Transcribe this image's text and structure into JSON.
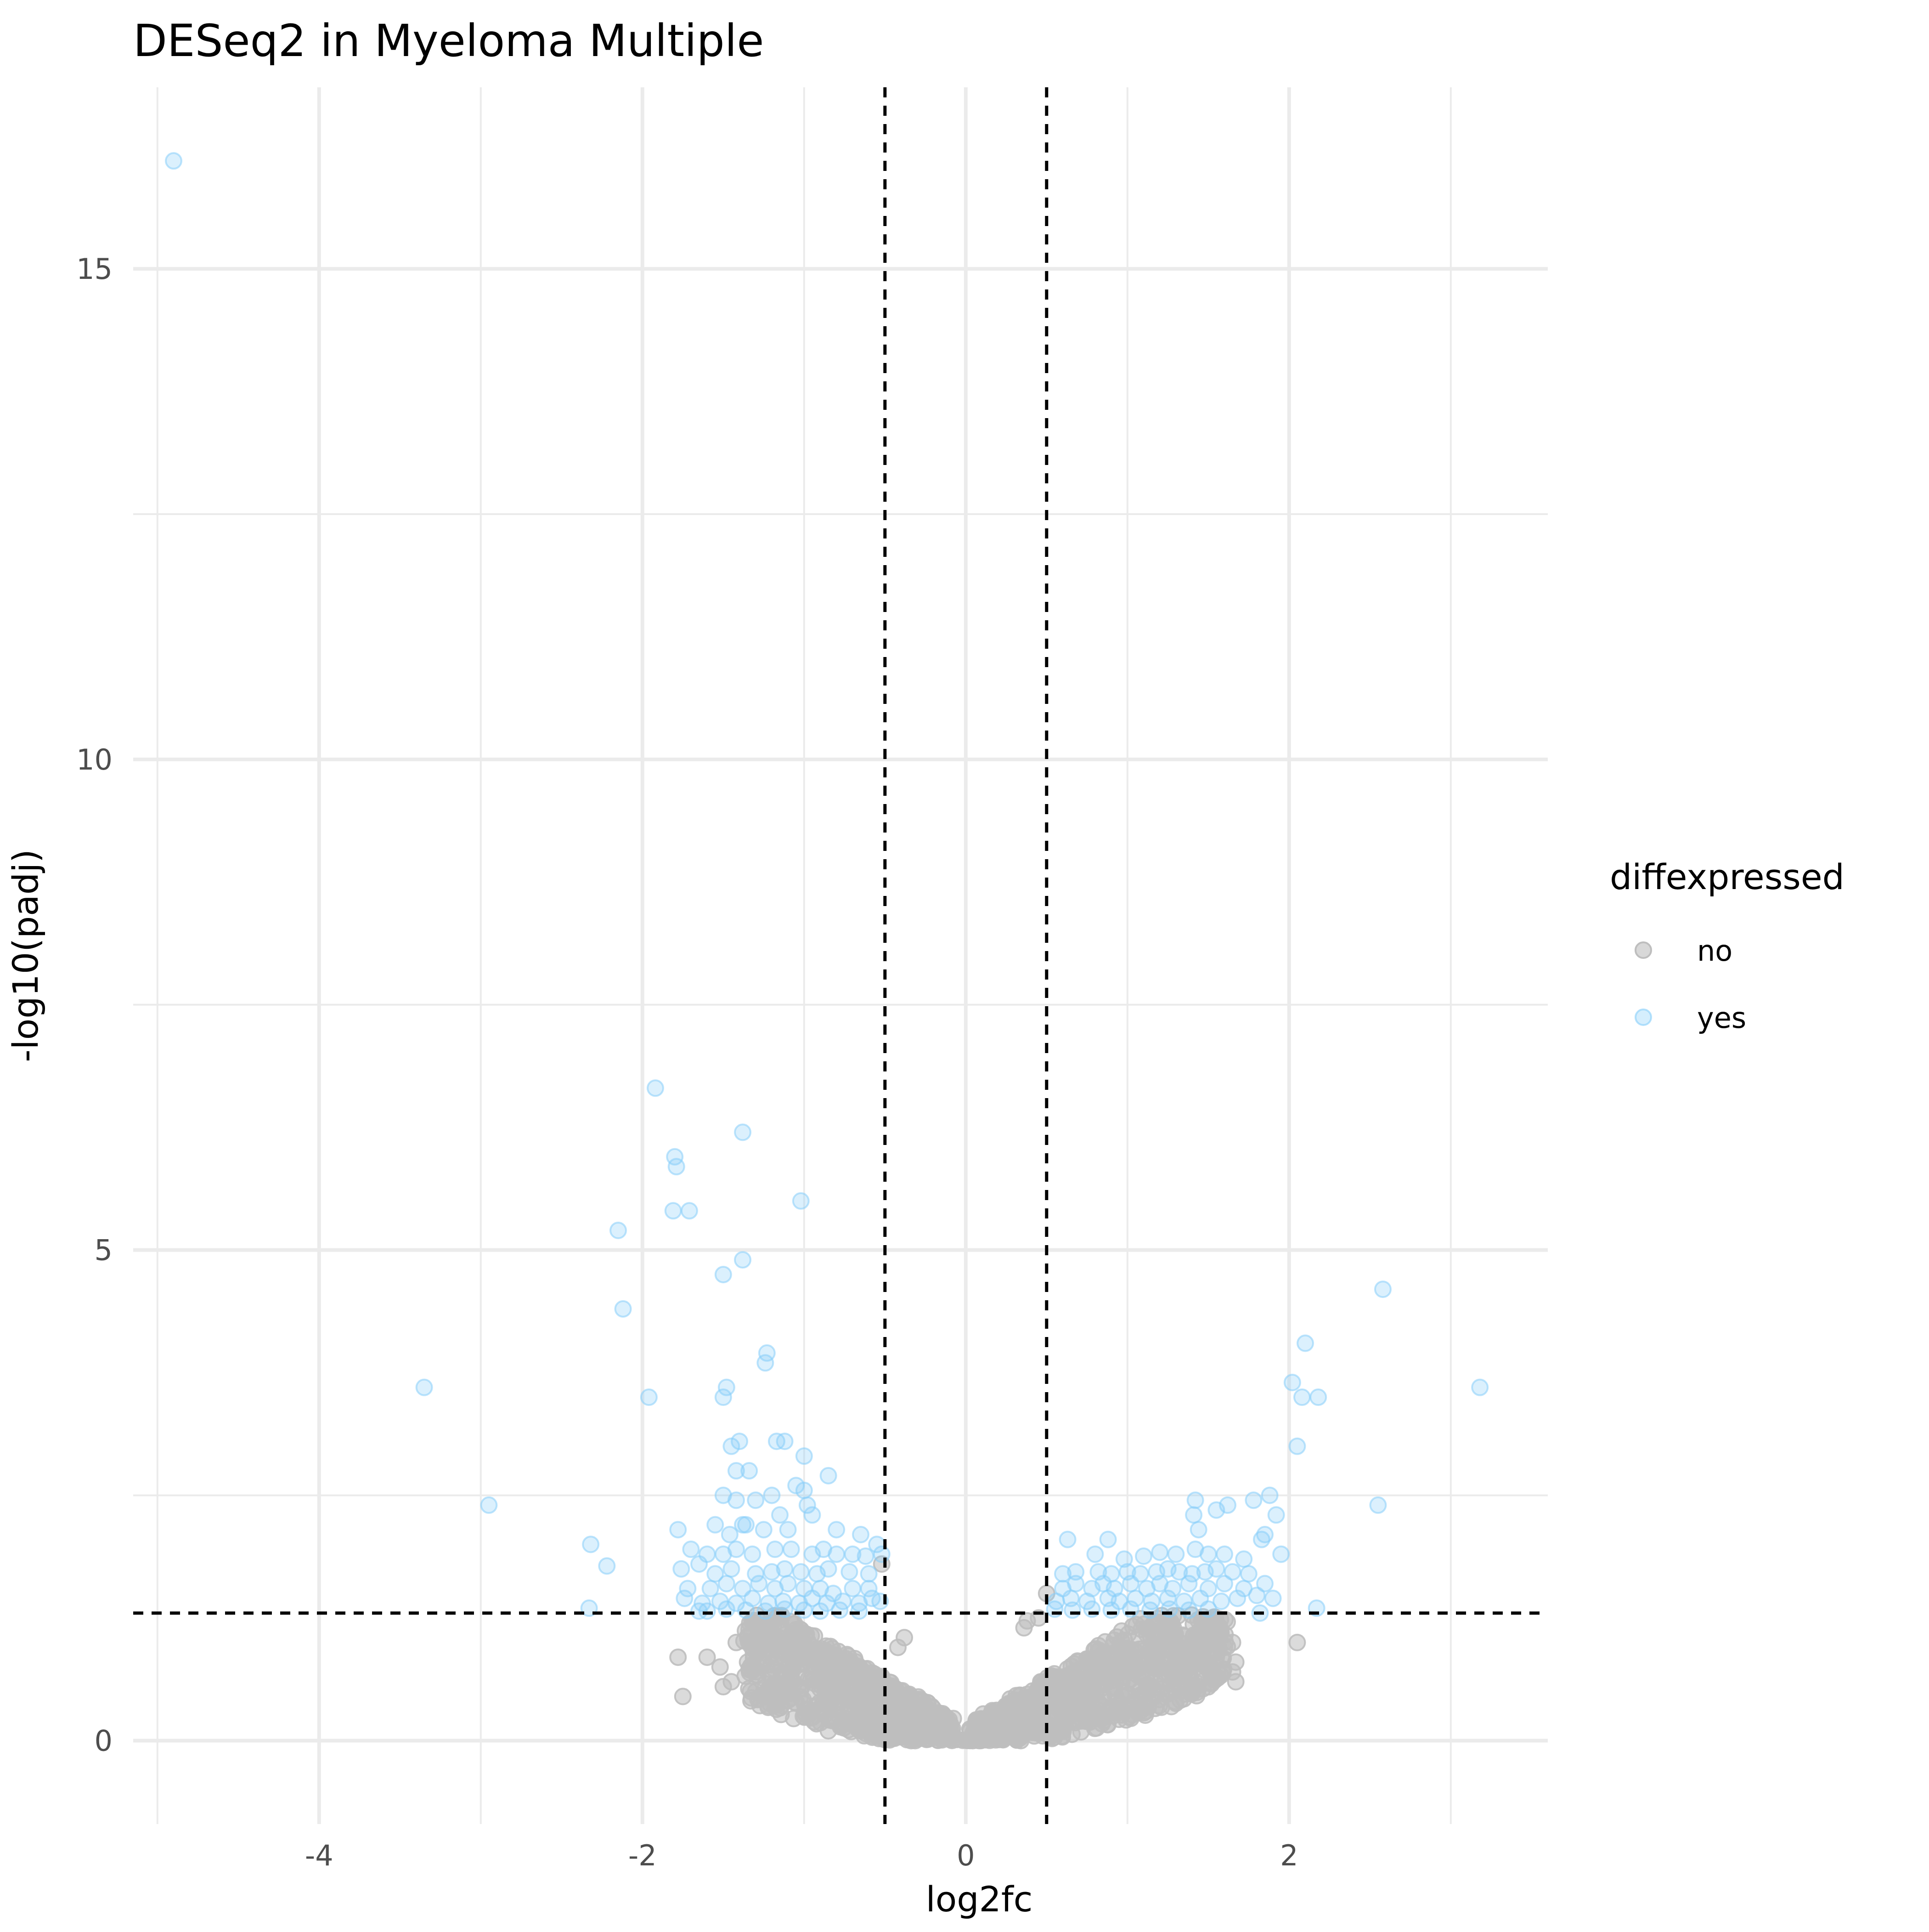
{
  "chart_data": {
    "type": "scatter",
    "title": "DESeq2 in Myeloma Multiple",
    "xlabel": "log2fc",
    "ylabel": "-log10(padj)",
    "xlim": [
      -5.15,
      3.6
    ],
    "ylim": [
      -0.85,
      16.85
    ],
    "x_ticks": [
      -4,
      -2,
      0,
      2
    ],
    "x_tick_labels": [
      "-4",
      "-2",
      "0",
      "2"
    ],
    "y_ticks": [
      0,
      5,
      10,
      15
    ],
    "y_tick_labels": [
      "0",
      "5",
      "10",
      "15"
    ],
    "grid": true,
    "thresholds": {
      "vertical": [
        -0.5,
        0.5
      ],
      "horizontal": [
        1.3
      ]
    },
    "legend": {
      "title": "diffexpressed",
      "placement": "right",
      "entries": [
        {
          "label": "no",
          "color": "#bebebe"
        },
        {
          "label": "yes",
          "color": "#87cefa"
        }
      ]
    },
    "series": [
      {
        "name": "yes",
        "color": "#87cefa",
        "points": [
          [
            -4.9,
            16.1
          ],
          [
            -3.35,
            3.6
          ],
          [
            -2.95,
            2.4
          ],
          [
            -2.32,
            2.0
          ],
          [
            -2.22,
            1.78
          ],
          [
            -2.33,
            1.35
          ],
          [
            -2.15,
            5.2
          ],
          [
            -2.12,
            4.4
          ],
          [
            -1.96,
            3.5
          ],
          [
            -1.92,
            6.65
          ],
          [
            -1.8,
            5.95
          ],
          [
            -1.79,
            5.85
          ],
          [
            -1.81,
            5.4
          ],
          [
            -1.71,
            5.4
          ],
          [
            -1.5,
            4.75
          ],
          [
            -1.38,
            4.9
          ],
          [
            -1.38,
            6.2
          ],
          [
            -1.02,
            5.5
          ],
          [
            -1.23,
            3.95
          ],
          [
            -1.24,
            3.85
          ],
          [
            -1.5,
            3.5
          ],
          [
            -1.48,
            3.6
          ],
          [
            -1.45,
            3.0
          ],
          [
            -1.4,
            3.05
          ],
          [
            -1.17,
            3.05
          ],
          [
            -1.12,
            3.05
          ],
          [
            -1.0,
            2.9
          ],
          [
            -0.85,
            2.7
          ],
          [
            -1.42,
            2.75
          ],
          [
            -1.34,
            2.75
          ],
          [
            -1.05,
            2.6
          ],
          [
            -1.0,
            2.55
          ],
          [
            -1.5,
            2.5
          ],
          [
            -1.42,
            2.45
          ],
          [
            -1.3,
            2.45
          ],
          [
            -1.2,
            2.5
          ],
          [
            -0.98,
            2.4
          ],
          [
            -0.95,
            2.3
          ],
          [
            -1.78,
            2.15
          ],
          [
            -1.55,
            2.2
          ],
          [
            -1.46,
            2.1
          ],
          [
            -1.38,
            2.2
          ],
          [
            -1.36,
            2.2
          ],
          [
            -1.25,
            2.15
          ],
          [
            -1.15,
            2.3
          ],
          [
            -1.1,
            2.15
          ],
          [
            -0.8,
            2.15
          ],
          [
            -0.65,
            2.1
          ],
          [
            -0.55,
            2.0
          ],
          [
            -0.52,
            1.9
          ],
          [
            -1.7,
            1.95
          ],
          [
            -1.6,
            1.9
          ],
          [
            -1.5,
            1.9
          ],
          [
            -1.42,
            1.95
          ],
          [
            -1.32,
            1.9
          ],
          [
            -1.18,
            1.95
          ],
          [
            -1.08,
            1.95
          ],
          [
            -0.95,
            1.9
          ],
          [
            -0.88,
            1.95
          ],
          [
            -0.8,
            1.9
          ],
          [
            -0.7,
            1.9
          ],
          [
            -0.62,
            1.88
          ],
          [
            -1.76,
            1.75
          ],
          [
            -1.65,
            1.8
          ],
          [
            -1.55,
            1.7
          ],
          [
            -1.45,
            1.75
          ],
          [
            -1.3,
            1.7
          ],
          [
            -1.2,
            1.72
          ],
          [
            -1.12,
            1.75
          ],
          [
            -1.02,
            1.72
          ],
          [
            -0.92,
            1.7
          ],
          [
            -0.85,
            1.75
          ],
          [
            -0.72,
            1.72
          ],
          [
            -0.6,
            1.7
          ],
          [
            -1.72,
            1.55
          ],
          [
            -1.58,
            1.55
          ],
          [
            -1.48,
            1.6
          ],
          [
            -1.38,
            1.55
          ],
          [
            -1.28,
            1.6
          ],
          [
            -1.18,
            1.55
          ],
          [
            -1.1,
            1.6
          ],
          [
            -1.0,
            1.55
          ],
          [
            -0.9,
            1.55
          ],
          [
            -0.82,
            1.5
          ],
          [
            -0.7,
            1.55
          ],
          [
            -0.6,
            1.55
          ],
          [
            -1.74,
            1.45
          ],
          [
            -1.63,
            1.4
          ],
          [
            -1.52,
            1.42
          ],
          [
            -1.42,
            1.4
          ],
          [
            -1.32,
            1.45
          ],
          [
            -1.22,
            1.4
          ],
          [
            -1.13,
            1.42
          ],
          [
            -1.03,
            1.4
          ],
          [
            -0.95,
            1.45
          ],
          [
            -0.86,
            1.4
          ],
          [
            -0.76,
            1.42
          ],
          [
            -0.66,
            1.4
          ],
          [
            -0.58,
            1.45
          ],
          [
            -0.53,
            1.42
          ],
          [
            -1.6,
            1.32
          ],
          [
            -1.48,
            1.34
          ],
          [
            -1.36,
            1.33
          ],
          [
            -1.24,
            1.32
          ],
          [
            -1.12,
            1.34
          ],
          [
            -1.0,
            1.33
          ],
          [
            -0.9,
            1.32
          ],
          [
            -0.78,
            1.33
          ],
          [
            -0.66,
            1.32
          ],
          [
            -1.65,
            1.32
          ],
          [
            2.58,
            4.6
          ],
          [
            2.1,
            4.05
          ],
          [
            2.02,
            3.65
          ],
          [
            2.08,
            3.5
          ],
          [
            2.18,
            3.5
          ],
          [
            3.18,
            3.6
          ],
          [
            2.05,
            3.0
          ],
          [
            2.55,
            2.4
          ],
          [
            1.88,
            2.5
          ],
          [
            1.78,
            2.45
          ],
          [
            1.62,
            2.4
          ],
          [
            1.55,
            2.35
          ],
          [
            1.42,
            2.45
          ],
          [
            1.41,
            2.3
          ],
          [
            1.44,
            2.15
          ],
          [
            1.85,
            2.1
          ],
          [
            1.92,
            2.3
          ],
          [
            1.83,
            2.05
          ],
          [
            1.95,
            1.9
          ],
          [
            1.72,
            1.85
          ],
          [
            1.6,
            1.9
          ],
          [
            1.5,
            1.9
          ],
          [
            1.42,
            1.95
          ],
          [
            1.3,
            1.9
          ],
          [
            1.2,
            1.92
          ],
          [
            1.1,
            1.88
          ],
          [
            0.98,
            1.85
          ],
          [
            0.88,
            2.05
          ],
          [
            0.8,
            1.9
          ],
          [
            0.63,
            2.05
          ],
          [
            1.75,
            1.7
          ],
          [
            1.65,
            1.72
          ],
          [
            1.55,
            1.75
          ],
          [
            1.48,
            1.72
          ],
          [
            1.4,
            1.7
          ],
          [
            1.32,
            1.72
          ],
          [
            1.25,
            1.75
          ],
          [
            1.18,
            1.72
          ],
          [
            1.08,
            1.7
          ],
          [
            1.0,
            1.72
          ],
          [
            0.9,
            1.7
          ],
          [
            0.82,
            1.72
          ],
          [
            0.68,
            1.72
          ],
          [
            0.6,
            1.7
          ],
          [
            1.85,
            1.6
          ],
          [
            1.72,
            1.55
          ],
          [
            1.6,
            1.6
          ],
          [
            1.5,
            1.55
          ],
          [
            1.38,
            1.6
          ],
          [
            1.28,
            1.55
          ],
          [
            1.2,
            1.6
          ],
          [
            1.12,
            1.55
          ],
          [
            1.02,
            1.6
          ],
          [
            0.92,
            1.55
          ],
          [
            0.85,
            1.6
          ],
          [
            0.78,
            1.55
          ],
          [
            0.68,
            1.6
          ],
          [
            0.6,
            1.55
          ],
          [
            1.9,
            1.45
          ],
          [
            1.8,
            1.48
          ],
          [
            1.68,
            1.45
          ],
          [
            1.58,
            1.42
          ],
          [
            1.45,
            1.45
          ],
          [
            1.35,
            1.42
          ],
          [
            1.25,
            1.45
          ],
          [
            1.15,
            1.42
          ],
          [
            1.05,
            1.45
          ],
          [
            0.95,
            1.42
          ],
          [
            0.88,
            1.45
          ],
          [
            0.75,
            1.42
          ],
          [
            0.65,
            1.45
          ],
          [
            0.56,
            1.42
          ],
          [
            1.5,
            1.34
          ],
          [
            1.38,
            1.33
          ],
          [
            1.26,
            1.34
          ],
          [
            1.14,
            1.33
          ],
          [
            1.02,
            1.34
          ],
          [
            0.9,
            1.33
          ],
          [
            0.78,
            1.34
          ],
          [
            0.66,
            1.33
          ],
          [
            0.55,
            1.34
          ],
          [
            1.82,
            1.3
          ],
          [
            2.17,
            1.35
          ]
        ]
      },
      {
        "name": "no",
        "color": "#bebebe",
        "points": [
          [
            -1.75,
            0.45
          ],
          [
            -1.78,
            0.85
          ],
          [
            -1.6,
            0.85
          ],
          [
            -1.52,
            0.75
          ],
          [
            -1.5,
            0.55
          ],
          [
            -1.45,
            0.6
          ],
          [
            -1.42,
            1.0
          ],
          [
            -1.35,
            0.8
          ],
          [
            -0.85,
            0.1
          ],
          [
            -0.58,
            0.05
          ],
          [
            -0.52,
            1.8
          ],
          [
            2.05,
            1.0
          ],
          [
            1.67,
            0.8
          ],
          [
            1.67,
            0.6
          ],
          [
            1.65,
            0.7
          ],
          [
            1.55,
            0.85
          ],
          [
            1.65,
            1.0
          ],
          [
            1.6,
            0.95
          ],
          [
            0.5,
            1.5
          ],
          [
            0.36,
            1.15
          ],
          [
            0.38,
            1.22
          ],
          [
            0.45,
            1.25
          ],
          [
            -0.38,
            1.05
          ],
          [
            -0.42,
            0.95
          ]
        ],
        "cloud": [
          {
            "x_from": -1.35,
            "x_to": -0.1,
            "steps": 70,
            "band": 9
          },
          {
            "x_from": 0.05,
            "x_to": 1.6,
            "steps": 80,
            "band": 9
          }
        ]
      }
    ]
  }
}
